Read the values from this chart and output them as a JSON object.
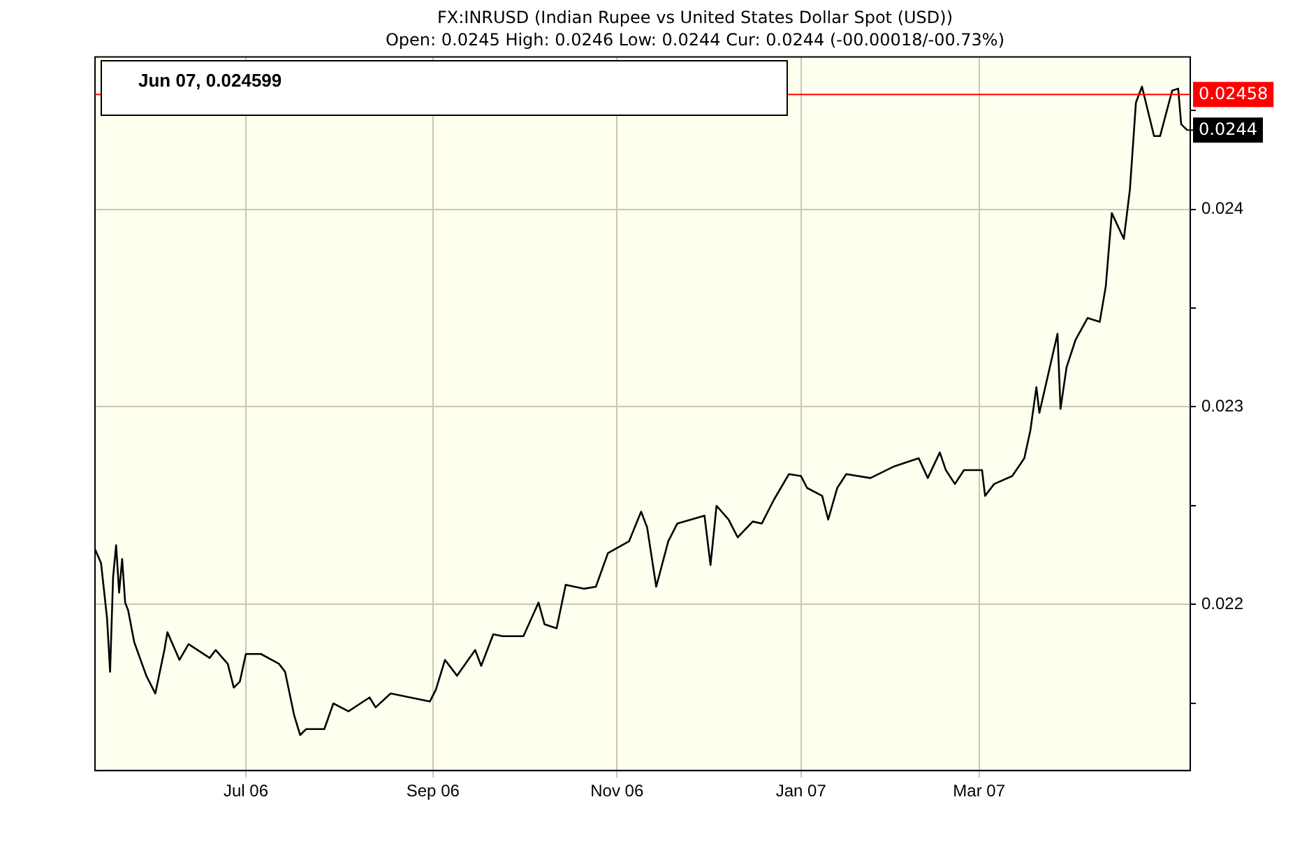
{
  "chart_data": {
    "type": "line",
    "title": "FX:INRUSD (Indian Rupee vs United States Dollar Spot (USD))",
    "subtitle": "Open: 0.0245 High: 0.0246 Low: 0.0244 Cur: 0.0244 (-00.00018/-00.73%)",
    "annotations": [
      "Jun 07, 0.024599",
      {
        "text": "0.0244",
        "x": "2007-05-09",
        "y": 0.0244
      }
    ],
    "x": [
      "2006-05-12",
      "2006-05-14",
      "2006-05-16",
      "2006-05-17",
      "2006-05-18",
      "2006-05-19",
      "2006-05-20",
      "2006-05-21",
      "2006-05-22",
      "2006-05-23",
      "2006-05-25",
      "2006-05-29",
      "2006-06-01",
      "2006-06-04",
      "2006-06-05",
      "2006-06-09",
      "2006-06-12",
      "2006-06-19",
      "2006-06-21",
      "2006-06-25",
      "2006-06-27",
      "2006-06-29",
      "2006-07-01",
      "2006-07-06",
      "2006-07-12",
      "2006-07-14",
      "2006-07-17",
      "2006-07-19",
      "2006-07-21",
      "2006-07-27",
      "2006-07-30",
      "2006-08-04",
      "2006-08-11",
      "2006-08-13",
      "2006-08-18",
      "2006-08-31",
      "2006-09-02",
      "2006-09-05",
      "2006-09-09",
      "2006-09-15",
      "2006-09-17",
      "2006-09-21",
      "2006-09-24",
      "2006-10-01",
      "2006-10-06",
      "2006-10-08",
      "2006-10-12",
      "2006-10-15",
      "2006-10-21",
      "2006-10-25",
      "2006-10-29",
      "2006-11-05",
      "2006-11-09",
      "2006-11-11",
      "2006-11-14",
      "2006-11-18",
      "2006-11-21",
      "2006-11-30",
      "2006-12-02",
      "2006-12-04",
      "2006-12-08",
      "2006-12-11",
      "2006-12-16",
      "2006-12-19",
      "2006-12-23",
      "2006-12-28",
      "2007-01-01",
      "2007-01-03",
      "2007-01-08",
      "2007-01-10",
      "2007-01-13",
      "2007-01-16",
      "2007-01-24",
      "2007-02-01",
      "2007-02-09",
      "2007-02-12",
      "2007-02-16",
      "2007-02-18",
      "2007-02-21",
      "2007-02-24",
      "2007-03-02",
      "2007-03-03",
      "2007-03-06",
      "2007-03-12",
      "2007-03-16",
      "2007-03-18",
      "2007-03-20",
      "2007-03-21",
      "2007-03-27",
      "2007-03-28",
      "2007-03-30",
      "2007-04-02",
      "2007-04-06",
      "2007-04-10",
      "2007-04-12",
      "2007-04-14",
      "2007-04-18",
      "2007-04-20",
      "2007-04-22",
      "2007-04-24",
      "2007-04-28",
      "2007-04-30",
      "2007-05-04",
      "2007-05-06",
      "2007-05-07",
      "2007-05-09"
    ],
    "series": [
      {
        "color": "#000000",
        "values": [
          0.02228,
          0.02221,
          0.02193,
          0.02166,
          0.02214,
          0.0223,
          0.02206,
          0.02223,
          0.02201,
          0.02197,
          0.02181,
          0.02164,
          0.02155,
          0.02177,
          0.02186,
          0.02172,
          0.0218,
          0.02173,
          0.02177,
          0.0217,
          0.02158,
          0.02161,
          0.02175,
          0.02175,
          0.0217,
          0.02166,
          0.02144,
          0.02134,
          0.02137,
          0.02137,
          0.0215,
          0.02146,
          0.02153,
          0.02148,
          0.02155,
          0.02151,
          0.02157,
          0.02172,
          0.02164,
          0.02177,
          0.02169,
          0.02185,
          0.02184,
          0.02184,
          0.02201,
          0.0219,
          0.02188,
          0.0221,
          0.02208,
          0.02209,
          0.02226,
          0.02232,
          0.02247,
          0.02239,
          0.02209,
          0.02232,
          0.02241,
          0.02245,
          0.0222,
          0.0225,
          0.02243,
          0.02234,
          0.02242,
          0.02241,
          0.02253,
          0.02266,
          0.02265,
          0.02259,
          0.02255,
          0.02243,
          0.02259,
          0.02266,
          0.02264,
          0.0227,
          0.02274,
          0.02264,
          0.02277,
          0.02268,
          0.02261,
          0.02268,
          0.02268,
          0.02255,
          0.02261,
          0.02265,
          0.02274,
          0.02288,
          0.0231,
          0.02297,
          0.02337,
          0.02299,
          0.0232,
          0.02334,
          0.02345,
          0.02343,
          0.02361,
          0.02398,
          0.02385,
          0.0241,
          0.02454,
          0.02462,
          0.02437,
          0.02437,
          0.0246,
          0.02461,
          0.02443,
          0.0244
        ]
      }
    ],
    "xlim": [
      "2006-05-12",
      "2007-05-10"
    ],
    "xticks": [
      {
        "value": "2006-07-01",
        "label": "Jul 06"
      },
      {
        "value": "2006-09-01",
        "label": "Sep 06"
      },
      {
        "value": "2006-11-01",
        "label": "Nov 06"
      },
      {
        "value": "2007-01-01",
        "label": "Jan 07"
      },
      {
        "value": "2007-03-01",
        "label": "Mar 07"
      }
    ],
    "ylim": [
      0.02116,
      0.02477
    ],
    "yticks": [
      {
        "value": 0.0215,
        "label": null
      },
      0.022,
      {
        "value": 0.0225,
        "label": null
      },
      0.023,
      {
        "value": 0.0235,
        "label": null
      },
      0.024,
      {
        "value": 0.0245,
        "label": null
      }
    ],
    "ref_lines": [
      {
        "axis": "y",
        "value": 0.02458,
        "label": "0.02458",
        "color": "#ff0000"
      }
    ],
    "grid": true,
    "legend": false,
    "marker": "none",
    "line_style": "solid"
  }
}
